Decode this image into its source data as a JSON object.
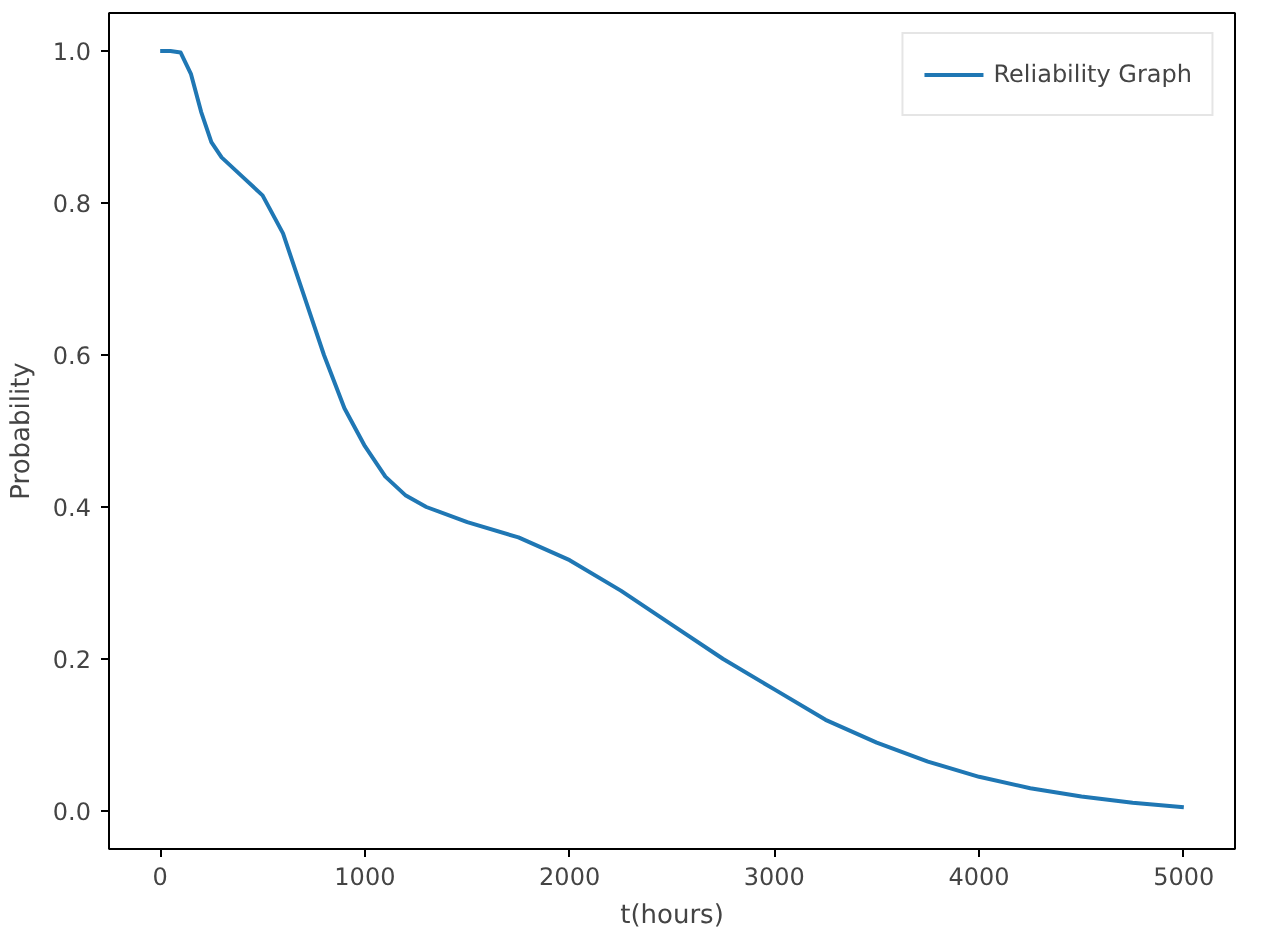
{
  "chart_data": {
    "type": "line",
    "xlabel": "t(hours)",
    "ylabel": "Probability",
    "x": [
      0,
      50,
      100,
      150,
      200,
      250,
      300,
      400,
      500,
      600,
      700,
      800,
      900,
      1000,
      1100,
      1200,
      1300,
      1500,
      1750,
      2000,
      2250,
      2500,
      2750,
      3000,
      3250,
      3500,
      3750,
      4000,
      4250,
      4500,
      4750,
      5000
    ],
    "series": [
      {
        "name": "Reliability Graph",
        "color": "#1f77b4",
        "values": [
          1.0,
          1.0,
          0.998,
          0.97,
          0.92,
          0.88,
          0.86,
          0.835,
          0.81,
          0.76,
          0.68,
          0.6,
          0.53,
          0.48,
          0.44,
          0.415,
          0.4,
          0.38,
          0.36,
          0.33,
          0.29,
          0.245,
          0.2,
          0.16,
          0.12,
          0.09,
          0.065,
          0.045,
          0.03,
          0.019,
          0.011,
          0.005
        ]
      }
    ],
    "xlim": [
      -250,
      5250
    ],
    "ylim": [
      -0.05,
      1.05
    ],
    "xticks": [
      0,
      1000,
      2000,
      3000,
      4000,
      5000
    ],
    "yticks": [
      {
        "value": 0,
        "label": "0.0"
      },
      {
        "value": 0.2,
        "label": "0.2"
      },
      {
        "value": 0.4,
        "label": "0.4"
      },
      {
        "value": 0.6,
        "label": "0.6"
      },
      {
        "value": 0.8,
        "label": "0.8"
      },
      {
        "value": 1.0,
        "label": "1.0"
      }
    ],
    "grid": false,
    "legend": "top right",
    "line_style": "solid",
    "marker": "none"
  }
}
